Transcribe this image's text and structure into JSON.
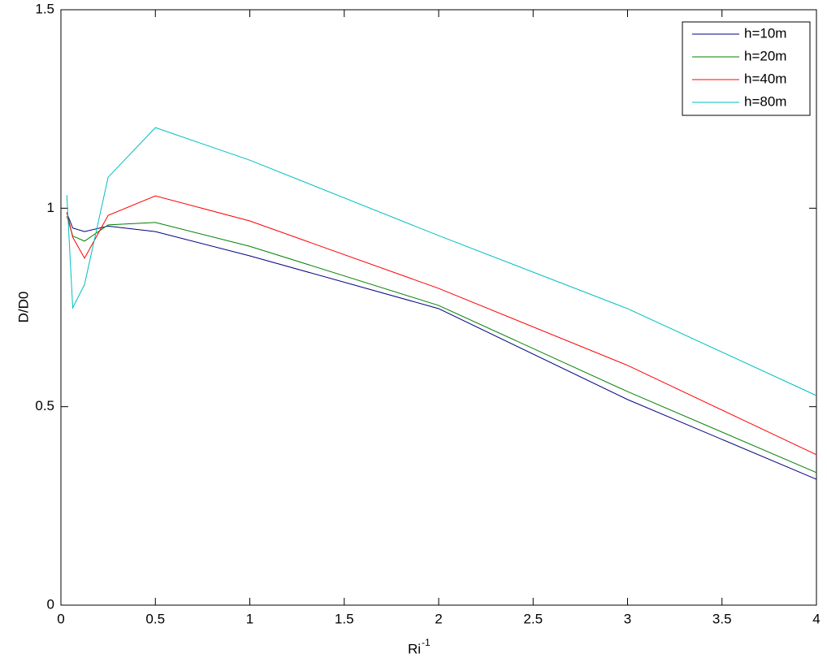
{
  "chart_data": {
    "type": "line",
    "xlabel": "Ri",
    "xlabel_superscript": "-1",
    "ylabel": "D/D0",
    "x": [
      0.03125,
      0.0625,
      0.125,
      0.25,
      0.5,
      1,
      2,
      3,
      4
    ],
    "series": [
      {
        "name": "h=10m",
        "color": "#000080",
        "values": [
          0.988,
          0.95,
          0.941,
          0.955,
          0.941,
          0.88,
          0.747,
          0.518,
          0.317
        ]
      },
      {
        "name": "h=20m",
        "color": "#008000",
        "values": [
          0.98,
          0.93,
          0.917,
          0.958,
          0.964,
          0.904,
          0.755,
          0.538,
          0.334
        ]
      },
      {
        "name": "h=40m",
        "color": "#ff0000",
        "values": [
          0.99,
          0.927,
          0.874,
          0.982,
          1.031,
          0.968,
          0.798,
          0.604,
          0.379
        ]
      },
      {
        "name": "h=80m",
        "color": "#00bfbf",
        "values": [
          1.033,
          0.749,
          0.808,
          1.078,
          1.203,
          1.121,
          0.931,
          0.747,
          0.528
        ]
      }
    ],
    "xlim": [
      0,
      4
    ],
    "xticks": [
      0,
      0.5,
      1,
      1.5,
      2,
      2.5,
      3,
      3.5,
      4
    ],
    "ylim": [
      0,
      1.5
    ],
    "yticks": [
      0,
      0.5,
      1,
      1.5
    ],
    "legend": "top-right"
  }
}
